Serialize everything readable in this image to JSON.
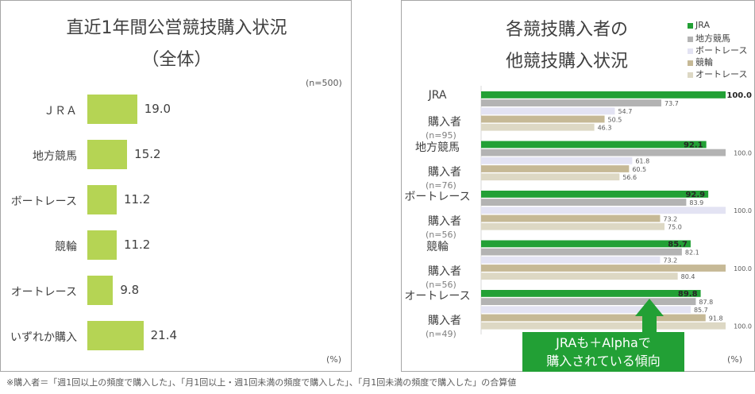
{
  "left_chart": {
    "title_line1": "直近1年間公営競技購入状況",
    "title_line2": "（全体）",
    "n_label": "(n=500)",
    "unit": "(%)"
  },
  "right_chart": {
    "title_line1": "各競技購入者の",
    "title_line2": "他競技購入状況",
    "unit": "(%)",
    "callout_line1": "JRAも＋Alphaで",
    "callout_line2": "購入されている傾向"
  },
  "footnote": "※購入者＝「週1回以上の頻度で購入した」、「月1回以上・週1回未満の頻度で購入した」、「月1回未満の頻度で購入した」の合算値",
  "chart_data": [
    {
      "type": "bar",
      "orientation": "horizontal",
      "title": "直近1年間公営競技購入状況（全体）",
      "categories": [
        "ＪＲＡ",
        "地方競馬",
        "ボートレース",
        "競輪",
        "オートレース",
        "いずれか購入"
      ],
      "values": [
        19.0,
        15.2,
        11.2,
        11.2,
        9.8,
        21.4
      ],
      "value_labels": [
        "19.0",
        "15.2",
        "11.2",
        "11.2",
        "9.8",
        "21.4"
      ],
      "color": "#b5d454",
      "xlim": [
        0,
        100
      ],
      "grid": false
    },
    {
      "type": "bar",
      "orientation": "horizontal",
      "title": "各競技購入者の他競技購入状況",
      "groups": [
        {
          "label": "JRA",
          "label2": "購入者",
          "n": "(n=95)"
        },
        {
          "label": "地方競馬",
          "label2": "購入者",
          "n": "(n=76)"
        },
        {
          "label": "ボートレース",
          "label2": "購入者",
          "n": "(n=56)"
        },
        {
          "label": "競輪",
          "label2": "購入者",
          "n": "(n=56)"
        },
        {
          "label": "オートレース",
          "label2": "購入者",
          "n": "(n=49)"
        }
      ],
      "series": [
        {
          "name": "JRA",
          "color": "#22a035",
          "values": [
            100.0,
            92.1,
            92.9,
            85.7,
            89.8
          ],
          "labels": [
            "100.0",
            "92.1",
            "92.9",
            "85.7",
            "89.8"
          ]
        },
        {
          "name": "地方競馬",
          "color": "#b3b3b3",
          "values": [
            73.7,
            100.0,
            83.9,
            82.1,
            87.8
          ],
          "labels": [
            "73.7",
            "100.0",
            "83.9",
            "82.1",
            "87.8"
          ]
        },
        {
          "name": "ボートレース",
          "color": "#e3e3f3",
          "values": [
            54.7,
            61.8,
            100.0,
            73.2,
            85.7
          ],
          "labels": [
            "54.7",
            "61.8",
            "100.0",
            "73.2",
            "85.7"
          ]
        },
        {
          "name": "競輪",
          "color": "#c6b996",
          "values": [
            50.5,
            60.5,
            73.2,
            100.0,
            91.8
          ],
          "labels": [
            "50.5",
            "60.5",
            "73.2",
            "100.0",
            "91.8"
          ]
        },
        {
          "name": "オートレース",
          "color": "#ddd8c4",
          "values": [
            46.3,
            56.6,
            75.0,
            80.4,
            100.0
          ],
          "labels": [
            "46.3",
            "56.6",
            "75.0",
            "80.4",
            "100.0"
          ]
        }
      ],
      "xlim": [
        0,
        100
      ],
      "legend": "top-right",
      "grid": false
    }
  ]
}
